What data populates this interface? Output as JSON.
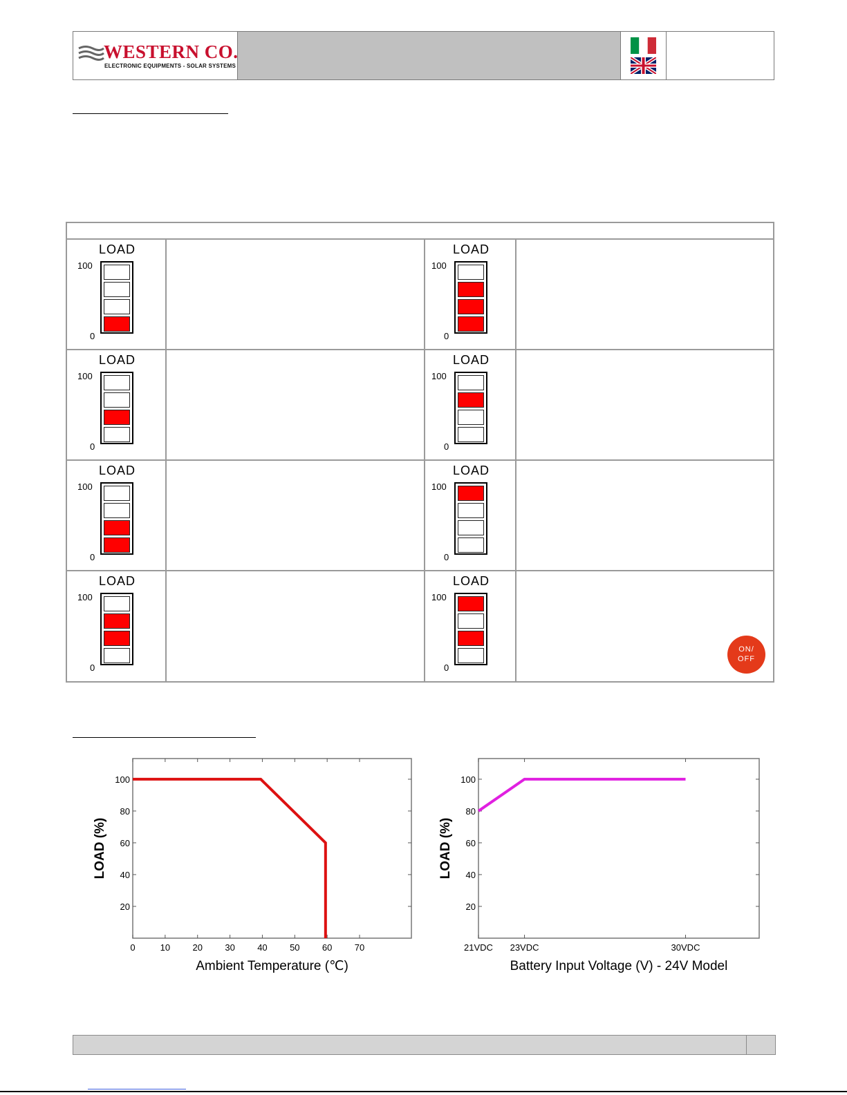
{
  "header": {
    "brand": "WESTERN CO.",
    "tagline": "ELECTRONIC EQUIPMENTS - SOLAR SYSTEMS",
    "flags": [
      "flag-italy-icon",
      "flag-uk-icon"
    ]
  },
  "load_table": {
    "title_label": "LOAD",
    "tick_top": "100",
    "tick_bottom": "0",
    "gauges": [
      {
        "segments_on": [
          false,
          false,
          false,
          true
        ]
      },
      {
        "segments_on": [
          false,
          true,
          true,
          true
        ]
      },
      {
        "segments_on": [
          false,
          false,
          true,
          false
        ]
      },
      {
        "segments_on": [
          false,
          true,
          false,
          false
        ]
      },
      {
        "segments_on": [
          false,
          false,
          true,
          true
        ]
      },
      {
        "segments_on": [
          true,
          false,
          false,
          false
        ]
      },
      {
        "segments_on": [
          false,
          true,
          true,
          false
        ]
      },
      {
        "segments_on": [
          true,
          false,
          true,
          false
        ]
      }
    ],
    "onoff_line1": "ON/",
    "onoff_line2": "OFF"
  },
  "chart_data": [
    {
      "type": "line",
      "title": "",
      "xlabel": "Ambient Temperature (℃)",
      "ylabel": "LOAD (%)",
      "xlim": [
        0,
        86
      ],
      "ylim": [
        0,
        113
      ],
      "x_ticks": [
        "0",
        "10",
        "20",
        "30",
        "40",
        "50",
        "60",
        "70"
      ],
      "y_ticks": [
        "20",
        "40",
        "60",
        "80",
        "100"
      ],
      "series": [
        {
          "color": "#dd1111",
          "points": [
            [
              0,
              100
            ],
            [
              39.5,
              100
            ],
            [
              59.5,
              60
            ],
            [
              59.5,
              0
            ]
          ]
        }
      ]
    },
    {
      "type": "line",
      "title": "",
      "xlabel": "Battery Input Voltage (V) - 24V Model",
      "ylabel": "LOAD (%)",
      "xlim": [
        21,
        33.2
      ],
      "ylim": [
        0,
        113
      ],
      "x_ticks": [
        "21VDC",
        "23VDC",
        "30VDC"
      ],
      "x_tick_values": [
        21,
        23,
        30
      ],
      "y_ticks": [
        "20",
        "40",
        "60",
        "80",
        "100"
      ],
      "series": [
        {
          "color": "#e020e0",
          "points": [
            [
              21,
              80
            ],
            [
              23,
              100
            ],
            [
              30,
              100
            ]
          ]
        }
      ]
    }
  ]
}
